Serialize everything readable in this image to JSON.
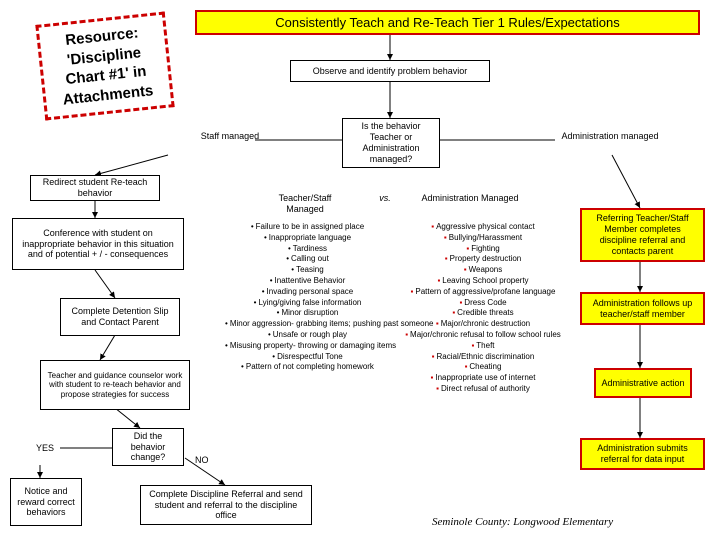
{
  "colors": {
    "accent": "#c00000",
    "highlight": "#ffff00",
    "line": "#000000"
  },
  "resource": {
    "line1": "Resource:",
    "line2": "'Discipline",
    "line3": "Chart #1' in",
    "line4": "Attachments"
  },
  "topbar": "Consistently Teach and Re-Teach Tier 1 Rules/Expectations",
  "observe": "Observe and identify problem behavior",
  "staff_managed": "Staff managed",
  "admin_managed": "Administration managed",
  "decision_q": "Is the behavior Teacher or Administration managed?",
  "col_left": "Teacher/Staff Managed",
  "vs": "vs.",
  "col_right": "Administration Managed",
  "redirect": "Redirect student Re-teach behavior",
  "conference": "Conference with student on inappropriate behavior in this situation and of potential + / - consequences",
  "detention": "Complete Detention Slip and Contact Parent",
  "counselor": "Teacher and guidance counselor work with student to re-teach behavior and propose strategies for success",
  "decision_change": "Did the behavior change?",
  "yes": "YES",
  "no": "NO",
  "notice": "Notice and reward correct behaviors",
  "referral": "Complete Discipline Referral and send student and referral to the discipline office",
  "r1": "Referring Teacher/Staff Member completes discipline referral and contacts parent",
  "r2": "Administration follows up teacher/staff member",
  "r3": "Administrative action",
  "r4": "Administration submits referral for data input",
  "staff_list": [
    "Failure to be in assigned place",
    "Inappropriate language",
    "Tardiness",
    "Calling out",
    "Teasing",
    "Inattentive Behavior",
    "Invading personal space",
    "Lying/giving false information",
    "Minor disruption",
    "Minor aggression- grabbing items; pushing past someone",
    "Unsafe or rough play",
    "Misusing property- throwing or damaging items",
    "Disrespectful Tone",
    "Pattern of not completing homework"
  ],
  "admin_list": [
    "Aggressive physical contact",
    "Bullying/Harassment",
    "Fighting",
    "Property destruction",
    "Weapons",
    "Leaving School property",
    "Pattern of aggressive/profane language",
    "Dress Code",
    "Credible threats",
    "Major/chronic destruction",
    "Major/chronic refusal to follow school rules",
    "Theft",
    "Racial/Ethnic discrimination",
    "Cheating",
    "Inappropriate use of internet",
    "Direct refusal of authority"
  ],
  "footer": "Seminole County: Longwood Elementary"
}
